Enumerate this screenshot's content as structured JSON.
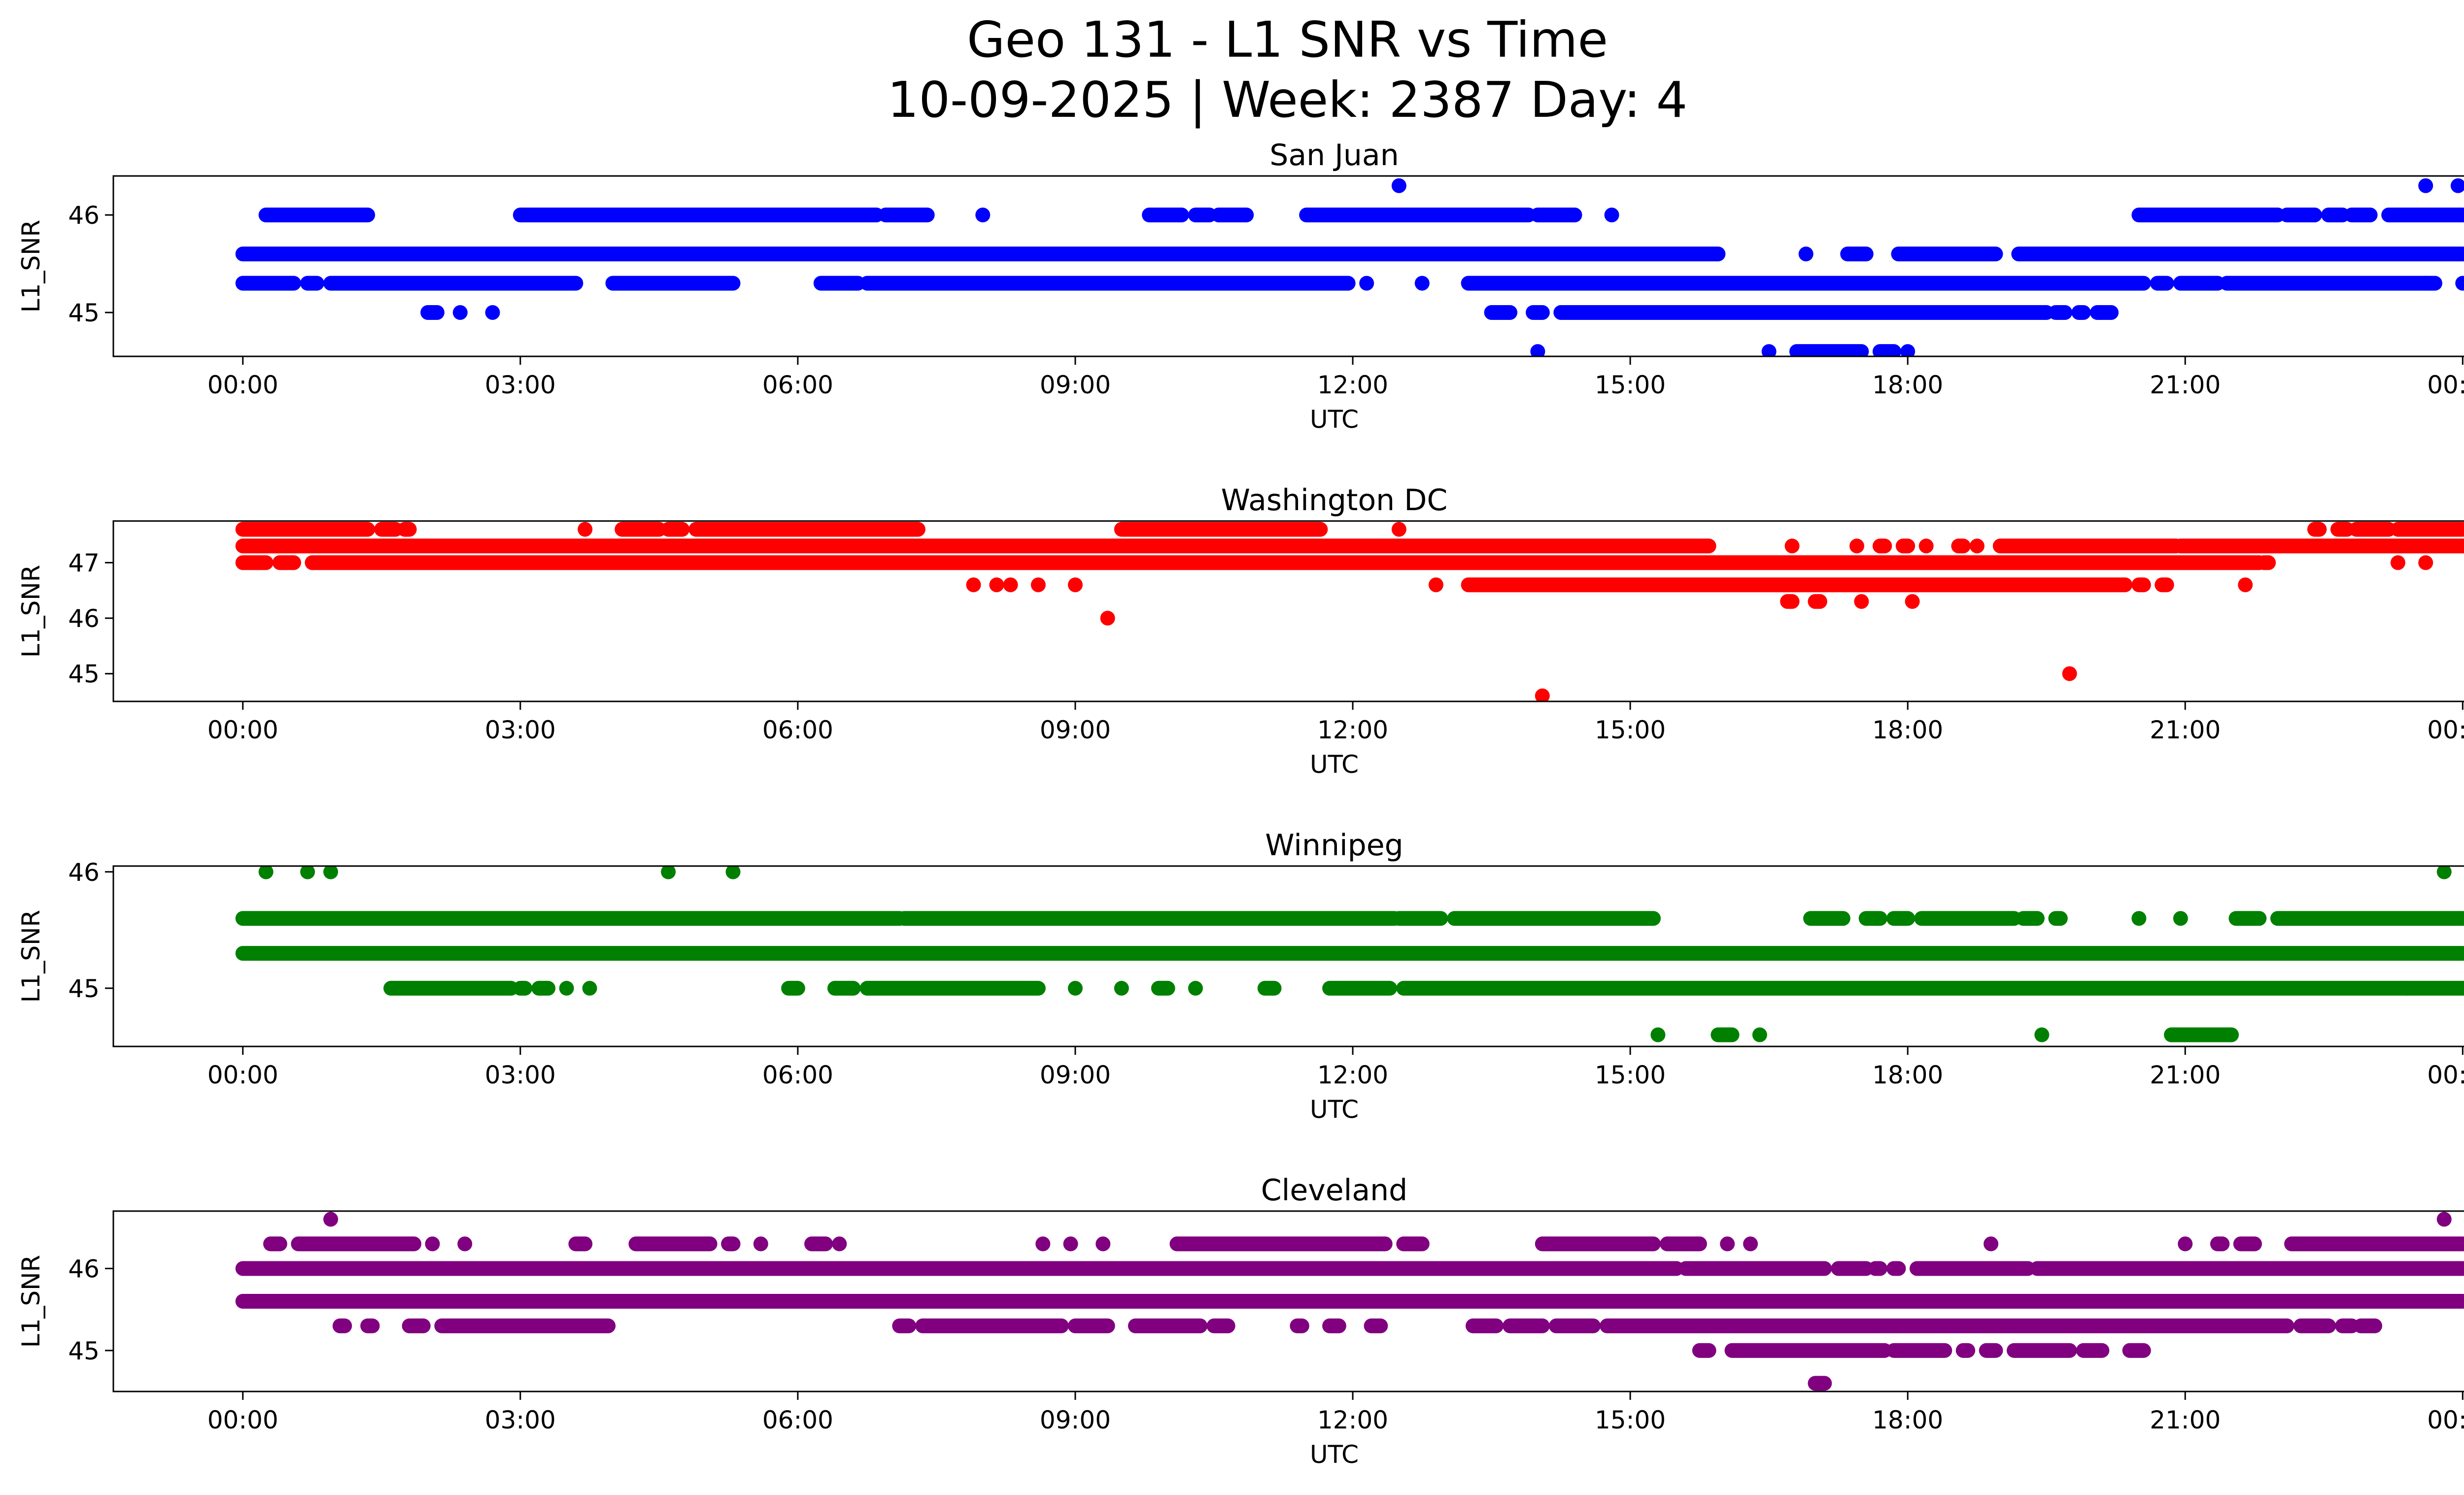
{
  "chart_data": [
    {
      "type": "scatter",
      "title": "San Juan",
      "xlabel": "UTC",
      "ylabel": "L1_SNR",
      "color": "#0000ff",
      "xlim_hours": [
        -1.4,
        25.0
      ],
      "ylim": [
        44.55,
        46.4
      ],
      "x_ticks": [
        "00:00",
        "03:00",
        "06:00",
        "09:00",
        "12:00",
        "15:00",
        "18:00",
        "21:00",
        "00:00"
      ],
      "y_ticks": [
        45,
        46
      ],
      "segments": [
        {
          "y": 46.0,
          "runs": [
            [
              0.25,
              1.35
            ],
            [
              3.0,
              6.85
            ],
            [
              6.95,
              7.4
            ],
            [
              9.8,
              10.15
            ],
            [
              10.3,
              10.45
            ],
            [
              10.55,
              10.85
            ],
            [
              11.5,
              13.9
            ],
            [
              14.0,
              14.4
            ],
            [
              20.5,
              22.0
            ],
            [
              22.1,
              22.4
            ],
            [
              22.55,
              22.7
            ],
            [
              22.8,
              23.0
            ],
            [
              23.2,
              24.0
            ]
          ]
        },
        {
          "y": 45.6,
          "runs": [
            [
              0.0,
              15.95
            ],
            [
              16.9,
              16.9
            ],
            [
              17.35,
              17.55
            ],
            [
              17.9,
              18.95
            ],
            [
              19.2,
              24.0
            ]
          ]
        },
        {
          "y": 45.3,
          "runs": [
            [
              0.0,
              0.55
            ],
            [
              0.7,
              0.8
            ],
            [
              0.95,
              3.6
            ],
            [
              4.0,
              5.3
            ],
            [
              6.25,
              6.65
            ],
            [
              6.75,
              11.95
            ],
            [
              13.25,
              20.55
            ],
            [
              20.7,
              20.8
            ],
            [
              20.95,
              21.35
            ],
            [
              21.45,
              23.7
            ],
            [
              24.0,
              24.0
            ]
          ]
        },
        {
          "y": 45.0,
          "runs": [
            [
              2.0,
              2.1
            ],
            [
              2.35,
              2.35
            ],
            [
              2.7,
              2.7
            ],
            [
              13.5,
              13.7
            ],
            [
              13.95,
              14.05
            ],
            [
              14.25,
              19.5
            ],
            [
              19.6,
              19.7
            ],
            [
              19.85,
              19.9
            ],
            [
              20.05,
              20.2
            ]
          ]
        },
        {
          "y": 44.6,
          "runs": [
            [
              14.0,
              14.0
            ],
            [
              16.5,
              16.5
            ],
            [
              16.8,
              17.5
            ],
            [
              17.7,
              17.85
            ],
            [
              18.0,
              18.0
            ]
          ]
        }
      ],
      "points": [
        [
          12.5,
          46.3
        ],
        [
          23.6,
          46.3
        ],
        [
          23.95,
          46.3
        ],
        [
          8.0,
          46.0
        ],
        [
          12.15,
          45.3
        ],
        [
          12.75,
          45.3
        ],
        [
          23.6,
          45.3
        ],
        [
          14.8,
          46.0
        ]
      ]
    },
    {
      "type": "scatter",
      "title": "Washington DC",
      "xlabel": "UTC",
      "ylabel": "L1_SNR",
      "color": "#ff0000",
      "xlim_hours": [
        -1.4,
        25.0
      ],
      "ylim": [
        44.5,
        47.75
      ],
      "x_ticks": [
        "00:00",
        "03:00",
        "06:00",
        "09:00",
        "12:00",
        "15:00",
        "18:00",
        "21:00",
        "00:00"
      ],
      "y_ticks": [
        45,
        46,
        47
      ],
      "segments": [
        {
          "y": 47.6,
          "runs": [
            [
              0.0,
              1.35
            ],
            [
              1.5,
              1.65
            ],
            [
              1.75,
              1.8
            ],
            [
              4.1,
              4.5
            ],
            [
              4.6,
              4.75
            ],
            [
              4.9,
              7.3
            ],
            [
              9.5,
              11.65
            ],
            [
              22.4,
              22.45
            ],
            [
              22.65,
              22.75
            ],
            [
              22.85,
              23.2
            ],
            [
              23.3,
              24.0
            ]
          ]
        },
        {
          "y": 47.3,
          "runs": [
            [
              0.0,
              15.85
            ],
            [
              16.75,
              16.75
            ],
            [
              17.45,
              17.45
            ],
            [
              17.7,
              17.75
            ],
            [
              17.95,
              18.0
            ],
            [
              18.2,
              18.2
            ],
            [
              18.55,
              18.6
            ],
            [
              18.75,
              18.75
            ],
            [
              19.0,
              20.9
            ],
            [
              20.95,
              24.0
            ]
          ]
        },
        {
          "y": 47.0,
          "runs": [
            [
              0.0,
              0.25
            ],
            [
              0.4,
              0.55
            ],
            [
              0.75,
              21.8
            ],
            [
              21.85,
              21.9
            ],
            [
              23.3,
              23.3
            ]
          ]
        },
        {
          "y": 46.6,
          "runs": [
            [
              13.25,
              20.35
            ],
            [
              20.5,
              20.55
            ],
            [
              20.75,
              20.8
            ]
          ]
        },
        {
          "y": 46.3,
          "runs": [
            [
              16.7,
              16.75
            ],
            [
              17.0,
              17.05
            ],
            [
              17.5,
              17.5
            ]
          ]
        }
      ],
      "points": [
        [
          3.7,
          47.6
        ],
        [
          12.5,
          47.6
        ],
        [
          12.9,
          46.6
        ],
        [
          7.9,
          46.6
        ],
        [
          8.15,
          46.6
        ],
        [
          8.3,
          46.6
        ],
        [
          8.6,
          46.6
        ],
        [
          9.0,
          46.6
        ],
        [
          9.35,
          46.0
        ],
        [
          14.05,
          44.6
        ],
        [
          19.75,
          45.0
        ],
        [
          21.65,
          46.6
        ],
        [
          18.05,
          46.3
        ],
        [
          23.6,
          47.0
        ],
        [
          24.0,
          47.3
        ]
      ]
    },
    {
      "type": "scatter",
      "title": "Winnipeg",
      "xlabel": "UTC",
      "ylabel": "L1_SNR",
      "color": "#008000",
      "xlim_hours": [
        -1.4,
        25.0
      ],
      "ylim": [
        44.5,
        46.05
      ],
      "x_ticks": [
        "00:00",
        "03:00",
        "06:00",
        "09:00",
        "12:00",
        "15:00",
        "18:00",
        "21:00",
        "00:00"
      ],
      "y_ticks": [
        45,
        46
      ],
      "segments": [
        {
          "y": 45.6,
          "runs": [
            [
              0.0,
              7.1
            ],
            [
              7.15,
              12.45
            ],
            [
              12.5,
              12.95
            ],
            [
              13.1,
              15.25
            ],
            [
              16.95,
              17.3
            ],
            [
              17.55,
              17.7
            ],
            [
              17.85,
              18.0
            ],
            [
              18.15,
              19.15
            ],
            [
              19.25,
              19.4
            ],
            [
              19.6,
              19.65
            ],
            [
              20.5,
              20.5
            ],
            [
              20.95,
              20.95
            ],
            [
              21.55,
              21.8
            ],
            [
              22.0,
              24.0
            ]
          ]
        },
        {
          "y": 45.3,
          "runs": [
            [
              0.0,
              24.0
            ]
          ]
        },
        {
          "y": 45.0,
          "runs": [
            [
              1.6,
              2.9
            ],
            [
              3.0,
              3.05
            ],
            [
              3.2,
              3.3
            ],
            [
              3.5,
              3.5
            ],
            [
              3.75,
              3.75
            ],
            [
              5.9,
              6.0
            ],
            [
              6.4,
              6.6
            ],
            [
              6.75,
              8.6
            ],
            [
              9.0,
              9.0
            ],
            [
              9.5,
              9.5
            ],
            [
              9.9,
              10.0
            ],
            [
              10.3,
              10.3
            ],
            [
              11.05,
              11.15
            ],
            [
              11.75,
              12.4
            ],
            [
              12.55,
              25.0
            ]
          ]
        },
        {
          "y": 44.6,
          "runs": [
            [
              15.3,
              15.3
            ],
            [
              15.95,
              16.1
            ],
            [
              16.4,
              16.4
            ],
            [
              19.45,
              19.45
            ],
            [
              20.85,
              21.5
            ]
          ]
        }
      ],
      "points": [
        [
          0.25,
          46.0
        ],
        [
          0.7,
          46.0
        ],
        [
          0.95,
          46.0
        ],
        [
          4.6,
          46.0
        ],
        [
          5.3,
          46.0
        ],
        [
          23.8,
          46.0
        ],
        [
          23.4,
          45.0
        ]
      ]
    },
    {
      "type": "scatter",
      "title": "Cleveland",
      "xlabel": "UTC",
      "ylabel": "L1_SNR",
      "color": "#800080",
      "xlim_hours": [
        -1.4,
        25.0
      ],
      "ylim": [
        44.5,
        46.7
      ],
      "x_ticks": [
        "00:00",
        "03:00",
        "06:00",
        "09:00",
        "12:00",
        "15:00",
        "18:00",
        "21:00",
        "00:00"
      ],
      "y_ticks": [
        45,
        46
      ],
      "segments": [
        {
          "y": 46.3,
          "runs": [
            [
              0.3,
              0.4
            ],
            [
              0.6,
              1.85
            ],
            [
              2.05,
              2.05
            ],
            [
              2.4,
              2.4
            ],
            [
              3.6,
              3.7
            ],
            [
              4.25,
              5.05
            ],
            [
              5.25,
              5.3
            ],
            [
              5.6,
              5.6
            ],
            [
              6.15,
              6.3
            ],
            [
              6.45,
              6.45
            ],
            [
              8.65,
              8.65
            ],
            [
              8.95,
              8.95
            ],
            [
              9.3,
              9.3
            ],
            [
              10.1,
              12.35
            ],
            [
              12.55,
              12.75
            ],
            [
              14.05,
              15.25
            ],
            [
              15.4,
              15.75
            ],
            [
              16.05,
              16.05
            ],
            [
              16.3,
              16.3
            ],
            [
              18.9,
              18.9
            ],
            [
              21.0,
              21.0
            ],
            [
              21.35,
              21.4
            ],
            [
              21.6,
              21.75
            ],
            [
              22.15,
              24.0
            ]
          ]
        },
        {
          "y": 46.0,
          "runs": [
            [
              0.0,
              15.5
            ],
            [
              15.6,
              17.1
            ],
            [
              17.25,
              17.55
            ],
            [
              17.65,
              17.7
            ],
            [
              17.85,
              17.9
            ],
            [
              18.1,
              19.3
            ],
            [
              19.4,
              24.0
            ]
          ]
        },
        {
          "y": 45.6,
          "runs": [
            [
              0.0,
              24.0
            ]
          ]
        },
        {
          "y": 45.3,
          "runs": [
            [
              1.05,
              1.1
            ],
            [
              1.35,
              1.4
            ],
            [
              1.8,
              1.95
            ],
            [
              2.15,
              3.95
            ],
            [
              7.1,
              7.2
            ],
            [
              7.35,
              8.85
            ],
            [
              9.0,
              9.35
            ],
            [
              9.65,
              10.35
            ],
            [
              10.5,
              10.65
            ],
            [
              11.4,
              11.45
            ],
            [
              11.75,
              11.85
            ],
            [
              12.2,
              12.3
            ],
            [
              13.3,
              13.55
            ],
            [
              13.7,
              14.05
            ],
            [
              14.2,
              14.6
            ],
            [
              14.75,
              22.1
            ],
            [
              22.25,
              22.55
            ],
            [
              22.7,
              22.8
            ],
            [
              22.9,
              23.05
            ]
          ]
        },
        {
          "y": 45.0,
          "runs": [
            [
              15.75,
              15.85
            ],
            [
              16.1,
              17.75
            ],
            [
              17.85,
              18.4
            ],
            [
              18.6,
              18.65
            ],
            [
              18.85,
              18.95
            ],
            [
              19.15,
              19.75
            ],
            [
              19.9,
              20.1
            ],
            [
              20.4,
              20.55
            ]
          ]
        },
        {
          "y": 44.6,
          "runs": [
            [
              17.0,
              17.1
            ]
          ]
        }
      ],
      "points": [
        [
          0.95,
          46.6
        ],
        [
          23.8,
          46.6
        ]
      ]
    }
  ],
  "figure": {
    "title_line1": "Geo 131 - L1 SNR vs Time",
    "title_line2": "10-09-2025 | Week: 2387 Day: 4"
  }
}
